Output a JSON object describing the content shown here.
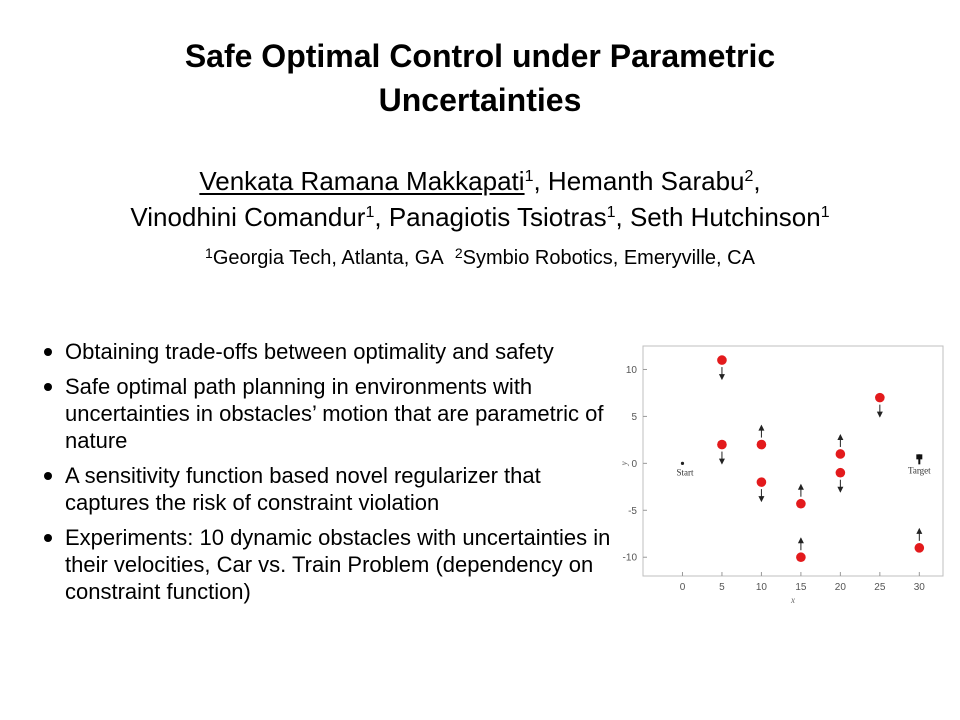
{
  "title": {
    "line1": "Safe Optimal Control under Parametric",
    "line2": "Uncertainties"
  },
  "authors": {
    "a1_name": "Venkata Ramana Makkapati",
    "a1_aff": "1",
    "a2_name": "Hemanth Sarabu",
    "a2_aff": "2",
    "a3_name": "Vinodhini Comandur",
    "a3_aff": "1",
    "a4_name": "Panagiotis Tsiotras",
    "a4_aff": "1",
    "a5_name": "Seth Hutchinson",
    "a5_aff": "1"
  },
  "affiliations": {
    "aff1_mark": "1",
    "aff1_text": "Georgia Tech, Atlanta, GA",
    "aff2_mark": "2",
    "aff2_text": "Symbio Robotics, Emeryville, CA"
  },
  "bullets": [
    "Obtaining trade-offs between optimality and safety",
    "Safe optimal path planning in environments with uncertainties in obstacles’ motion that are parametric of nature",
    "A sensitivity function based novel regularizer that captures the risk of constraint violation",
    "Experiments: 10 dynamic obstacles with uncertainties in their velocities, Car vs. Train Problem (dependency on constraint function)"
  ],
  "chart_data": {
    "type": "scatter",
    "title": "",
    "xlabel": "x",
    "ylabel": "y",
    "xlim": [
      -5,
      33
    ],
    "ylim": [
      -12,
      12.5
    ],
    "xticks": [
      0,
      5,
      10,
      15,
      20,
      25,
      30
    ],
    "yticks": [
      10,
      5,
      0,
      -5,
      -10
    ],
    "obstacles": [
      {
        "x": 5,
        "y": 11,
        "direction": "down"
      },
      {
        "x": 5,
        "y": 2,
        "direction": "down"
      },
      {
        "x": 10,
        "y": 2,
        "direction": "up"
      },
      {
        "x": 10,
        "y": -2,
        "direction": "down"
      },
      {
        "x": 15,
        "y": -4.3,
        "direction": "up"
      },
      {
        "x": 15,
        "y": -10,
        "direction": "up"
      },
      {
        "x": 20,
        "y": 1,
        "direction": "up"
      },
      {
        "x": 20,
        "y": -1,
        "direction": "down"
      },
      {
        "x": 25,
        "y": 7,
        "direction": "down"
      },
      {
        "x": 30,
        "y": -9,
        "direction": "up"
      }
    ],
    "start": {
      "x": 0,
      "y": 0,
      "label": "Start"
    },
    "target": {
      "x": 30,
      "y": 0,
      "label": "Target"
    },
    "marker_color": "#e31a1c"
  }
}
